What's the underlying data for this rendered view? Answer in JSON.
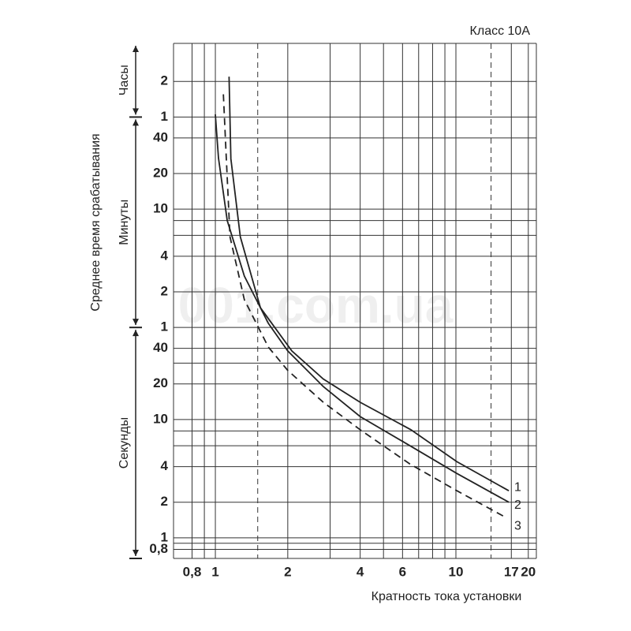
{
  "chart_data": {
    "type": "line",
    "title": "Класс 10А",
    "x_label": "Кратность тока установки",
    "y_label": "Среднее время срабатывания",
    "watermark": "001.com.ua",
    "log_x": true,
    "log_y": true,
    "grid": true,
    "xlim": [
      0.67,
      21.6
    ],
    "ylim": [
      0.67,
      15100
    ],
    "xticks": [
      {
        "value": 0.8,
        "label": "0,8"
      },
      1,
      2,
      4,
      6,
      10,
      17,
      20
    ],
    "yticks": [
      {
        "value": 0.8,
        "label": "0,8"
      },
      1,
      2,
      4,
      10,
      20,
      40,
      {
        "value": 60,
        "label": "1"
      },
      {
        "value": 120,
        "label": "2"
      },
      {
        "value": 240,
        "label": "4"
      },
      {
        "value": 600,
        "label": "10"
      },
      {
        "value": 1200,
        "label": "20"
      },
      {
        "value": 2400,
        "label": "40"
      },
      {
        "value": 3600,
        "label": "1"
      },
      {
        "value": 7200,
        "label": "2"
      }
    ],
    "x_minor_ticks": [
      0.9,
      3,
      5,
      7,
      8,
      9
    ],
    "y_minor_ticks": [
      0.9,
      6,
      8,
      30,
      360,
      480
    ],
    "reference_x": [
      1.5,
      14
    ],
    "sections": [
      "Часы",
      "Минуты",
      "Секунды"
    ],
    "section_bounds": [
      3600,
      60
    ],
    "series": [
      {
        "name": "1",
        "color": "#222222",
        "dash": false,
        "x": [
          1.14,
          1.16,
          1.27,
          1.54,
          2.08,
          2.81,
          4.0,
          6.5,
          10.1,
          16.6
        ],
        "values": [
          7900,
          1600,
          350,
          88,
          38,
          22,
          14,
          8.2,
          4.4,
          2.5
        ]
      },
      {
        "name": "2",
        "color": "#222222",
        "dash": false,
        "x": [
          1.0,
          1.03,
          1.12,
          1.32,
          1.66,
          2.0,
          2.81,
          4.0,
          6.45,
          10.1,
          16.6
        ],
        "values": [
          3800,
          1620,
          480,
          163,
          65,
          38,
          19,
          10.6,
          6.0,
          3.5,
          2.0
        ]
      },
      {
        "name": "3",
        "color": "#222222",
        "dash": true,
        "x": [
          1.08,
          1.11,
          1.15,
          1.32,
          1.66,
          2.0,
          2.81,
          4.0,
          6.45,
          10.1,
          16.0
        ],
        "values": [
          5600,
          1620,
          350,
          103,
          41,
          26,
          14,
          8.2,
          4.2,
          2.5,
          1.5
        ]
      }
    ]
  }
}
